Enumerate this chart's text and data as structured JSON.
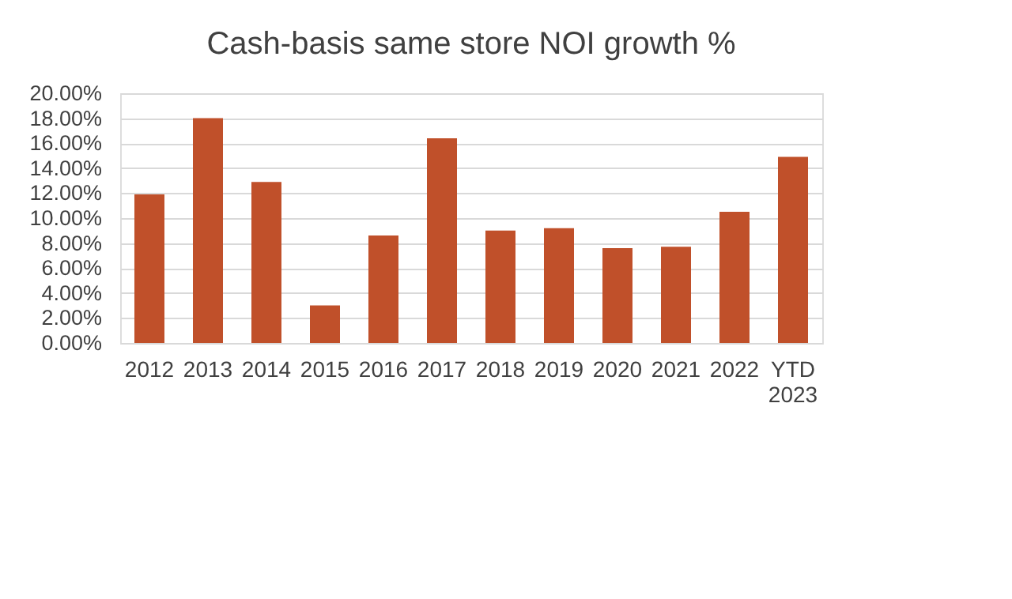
{
  "chart_data": {
    "type": "bar",
    "title": "Cash-basis same store NOI growth %",
    "categories": [
      "2012",
      "2013",
      "2014",
      "2015",
      "2016",
      "2017",
      "2018",
      "2019",
      "2020",
      "2021",
      "2022",
      "YTD 2023"
    ],
    "values": [
      11.9,
      18.0,
      12.9,
      3.0,
      8.6,
      16.4,
      9.0,
      9.2,
      7.6,
      7.7,
      10.5,
      14.9
    ],
    "color": "#c0502a",
    "ylim": [
      0,
      20
    ],
    "yticks": [
      {
        "value": 0,
        "label": "0.00%"
      },
      {
        "value": 2,
        "label": "2.00%"
      },
      {
        "value": 4,
        "label": "4.00%"
      },
      {
        "value": 6,
        "label": "6.00%"
      },
      {
        "value": 8,
        "label": "8.00%"
      },
      {
        "value": 10,
        "label": "10.00%"
      },
      {
        "value": 12,
        "label": "12.00%"
      },
      {
        "value": 14,
        "label": "14.00%"
      },
      {
        "value": 16,
        "label": "16.00%"
      },
      {
        "value": 18,
        "label": "18.00%"
      },
      {
        "value": 20,
        "label": "20.00%"
      }
    ],
    "grid": "y"
  }
}
